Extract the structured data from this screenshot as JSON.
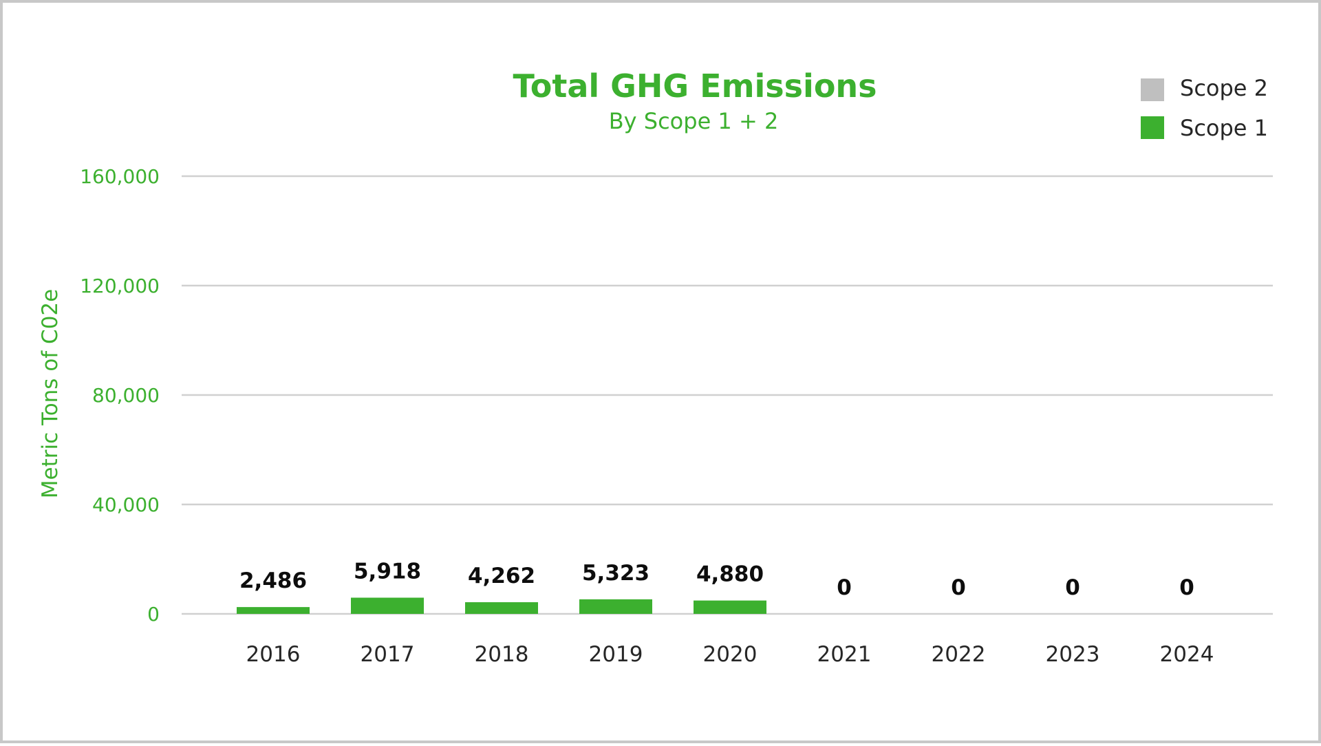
{
  "colors": {
    "accent": "#3cb02f",
    "scope2": "#bfbfbf",
    "grid": "#d0d0d0",
    "border": "#c8c8c8"
  },
  "chart_data": {
    "type": "bar",
    "title": "Total GHG Emissions",
    "subtitle": "By Scope 1 + 2",
    "xlabel": "",
    "ylabel": "Metric Tons of C02e",
    "categories": [
      "2016",
      "2017",
      "2018",
      "2019",
      "2020",
      "2021",
      "2022",
      "2023",
      "2024"
    ],
    "series": [
      {
        "name": "Scope 1",
        "color": "#3cb02f",
        "values": [
          2486,
          5918,
          4262,
          5323,
          4880,
          0,
          0,
          0,
          0
        ]
      },
      {
        "name": "Scope 2",
        "color": "#bfbfbf",
        "values": [
          0,
          0,
          0,
          0,
          0,
          0,
          0,
          0,
          0
        ]
      }
    ],
    "data_labels": [
      "2,486",
      "5,918",
      "4,262",
      "5,323",
      "4,880",
      "0",
      "0",
      "0",
      "0"
    ],
    "yticks": [
      "0",
      "40,000",
      "80,000",
      "120,000",
      "160,000"
    ],
    "ylim": [
      0,
      160000
    ],
    "stacked": true,
    "grid": true,
    "legend_position": "top-right"
  }
}
